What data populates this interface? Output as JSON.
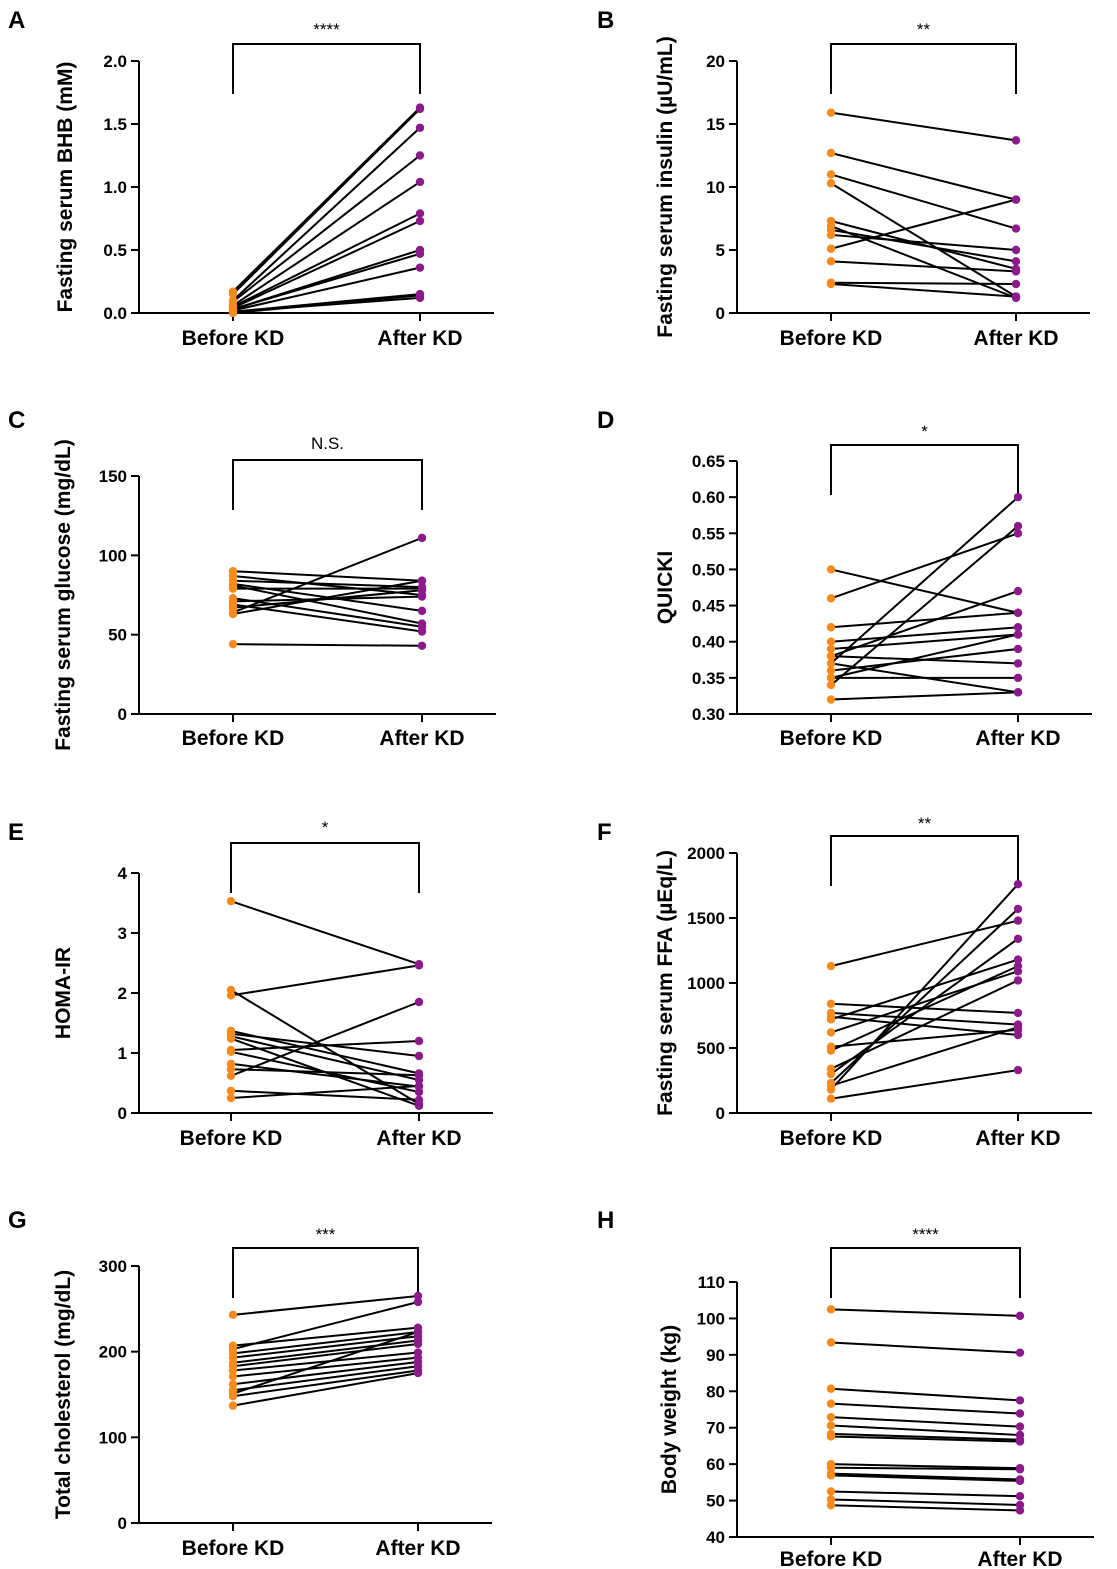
{
  "colors": {
    "before": "#F58A1F",
    "after": "#8B1A8B",
    "line": "#000000"
  },
  "chart_data": [
    {
      "panel": "A",
      "type": "line",
      "ylabel": "Fasting serum BHB (mM)",
      "categories": [
        "Before KD",
        "After KD"
      ],
      "ylim": [
        0,
        2.0
      ],
      "yticks": [
        0.0,
        0.5,
        1.0,
        1.5,
        2.0
      ],
      "ytick_labels": [
        "0.0",
        "0.5",
        "1.0",
        "1.5",
        "2.0"
      ],
      "significance": "****",
      "pairs": [
        [
          0.17,
          1.63
        ],
        [
          0.15,
          1.62
        ],
        [
          0.1,
          1.47
        ],
        [
          0.09,
          1.25
        ],
        [
          0.06,
          1.04
        ],
        [
          0.05,
          0.79
        ],
        [
          0.04,
          0.73
        ],
        [
          0.03,
          0.5
        ],
        [
          0.03,
          0.47
        ],
        [
          0.02,
          0.36
        ],
        [
          0.01,
          0.15
        ],
        [
          0.01,
          0.12
        ],
        [
          0.0,
          0.14
        ]
      ]
    },
    {
      "panel": "B",
      "type": "line",
      "ylabel": "Fasting serum insulin (µU/mL)",
      "categories": [
        "Before KD",
        "After KD"
      ],
      "ylim": [
        0,
        20
      ],
      "yticks": [
        0,
        5,
        10,
        15,
        20
      ],
      "ytick_labels": [
        "0",
        "5",
        "10",
        "15",
        "20"
      ],
      "significance": "**",
      "pairs": [
        [
          15.9,
          13.7
        ],
        [
          12.7,
          9.0
        ],
        [
          11.0,
          6.7
        ],
        [
          10.3,
          1.3
        ],
        [
          7.3,
          3.5
        ],
        [
          6.9,
          1.2
        ],
        [
          6.6,
          4.1
        ],
        [
          6.2,
          5.0
        ],
        [
          5.1,
          9.0
        ],
        [
          4.1,
          3.3
        ],
        [
          2.4,
          2.3
        ],
        [
          2.3,
          1.3
        ]
      ]
    },
    {
      "panel": "C",
      "type": "line",
      "ylabel": "Fasting serum glucose (mg/dL)",
      "categories": [
        "Before KD",
        "After KD"
      ],
      "ylim": [
        0,
        150
      ],
      "yticks": [
        0,
        50,
        100,
        150
      ],
      "ytick_labels": [
        "0",
        "50",
        "100",
        "150"
      ],
      "significance": "N.S.",
      "pairs": [
        [
          90,
          84
        ],
        [
          87,
          75
        ],
        [
          84,
          80
        ],
        [
          82,
          65
        ],
        [
          81,
          57
        ],
        [
          79,
          79
        ],
        [
          73,
          55
        ],
        [
          71,
          74
        ],
        [
          69,
          52
        ],
        [
          67,
          78
        ],
        [
          64,
          111
        ],
        [
          63,
          84
        ],
        [
          44,
          43
        ]
      ]
    },
    {
      "panel": "D",
      "type": "line",
      "ylabel": "QUICKI",
      "categories": [
        "Before KD",
        "After KD"
      ],
      "ylim": [
        0.3,
        0.65
      ],
      "yticks": [
        0.3,
        0.35,
        0.4,
        0.45,
        0.5,
        0.55,
        0.6,
        0.65
      ],
      "ytick_labels": [
        "0.30",
        "0.35",
        "0.40",
        "0.45",
        "0.50",
        "0.55",
        "0.60",
        "0.65"
      ],
      "significance": "*",
      "pairs": [
        [
          0.5,
          0.44
        ],
        [
          0.46,
          0.55
        ],
        [
          0.42,
          0.44
        ],
        [
          0.4,
          0.42
        ],
        [
          0.39,
          0.41
        ],
        [
          0.38,
          0.37
        ],
        [
          0.38,
          0.47
        ],
        [
          0.37,
          0.6
        ],
        [
          0.37,
          0.33
        ],
        [
          0.36,
          0.39
        ],
        [
          0.35,
          0.35
        ],
        [
          0.35,
          0.41
        ],
        [
          0.34,
          0.56
        ],
        [
          0.32,
          0.33
        ]
      ]
    },
    {
      "panel": "E",
      "type": "line",
      "ylabel": "HOMA-IR",
      "categories": [
        "Before KD",
        "After KD"
      ],
      "ylim": [
        0,
        4
      ],
      "yticks": [
        0,
        1,
        2,
        3,
        4
      ],
      "ytick_labels": [
        "0",
        "1",
        "2",
        "3",
        "4"
      ],
      "significance": "*",
      "pairs": [
        [
          3.53,
          2.48
        ],
        [
          2.05,
          0.15
        ],
        [
          1.96,
          2.46
        ],
        [
          1.37,
          0.66
        ],
        [
          1.32,
          0.95
        ],
        [
          1.28,
          0.55
        ],
        [
          1.24,
          0.12
        ],
        [
          1.05,
          1.2
        ],
        [
          1.02,
          0.35
        ],
        [
          0.82,
          0.44
        ],
        [
          0.73,
          0.63
        ],
        [
          0.62,
          1.85
        ],
        [
          0.37,
          0.22
        ],
        [
          0.25,
          0.45
        ]
      ]
    },
    {
      "panel": "F",
      "type": "line",
      "ylabel": "Fasting serum FFA (µEq/L)",
      "categories": [
        "Before KD",
        "After KD"
      ],
      "ylim": [
        0,
        2000
      ],
      "yticks": [
        0,
        500,
        1000,
        1500,
        2000
      ],
      "ytick_labels": [
        "0",
        "500",
        "1000",
        "1500",
        "2000"
      ],
      "significance": "**",
      "pairs": [
        [
          1130,
          1480
        ],
        [
          840,
          770
        ],
        [
          770,
          680
        ],
        [
          740,
          600
        ],
        [
          720,
          1180
        ],
        [
          620,
          1090
        ],
        [
          510,
          640
        ],
        [
          480,
          1130
        ],
        [
          340,
          1020
        ],
        [
          300,
          1340
        ],
        [
          230,
          1570
        ],
        [
          210,
          660
        ],
        [
          180,
          1760
        ],
        [
          110,
          330
        ]
      ]
    },
    {
      "panel": "G",
      "type": "line",
      "ylabel": "Total cholesterol (mg/dL)",
      "categories": [
        "Before KD",
        "After KD"
      ],
      "ylim": [
        0,
        300
      ],
      "yticks": [
        0,
        100,
        200,
        300
      ],
      "ytick_labels": [
        "0",
        "100",
        "200",
        "300"
      ],
      "significance": "***",
      "pairs": [
        [
          243,
          265
        ],
        [
          207,
          228
        ],
        [
          203,
          258
        ],
        [
          198,
          223
        ],
        [
          193,
          218
        ],
        [
          187,
          213
        ],
        [
          183,
          209
        ],
        [
          178,
          199
        ],
        [
          171,
          193
        ],
        [
          162,
          188
        ],
        [
          155,
          183
        ],
        [
          151,
          223
        ],
        [
          148,
          178
        ],
        [
          137,
          175
        ]
      ]
    },
    {
      "panel": "H",
      "type": "line",
      "ylabel": "Body weight (kg)",
      "categories": [
        "Before KD",
        "After KD"
      ],
      "ylim": [
        40,
        110
      ],
      "yticks": [
        40,
        50,
        60,
        70,
        80,
        90,
        100,
        110
      ],
      "ytick_labels": [
        "40",
        "50",
        "60",
        "70",
        "80",
        "90",
        "100",
        "110"
      ],
      "significance": "****",
      "pairs": [
        [
          102.5,
          100.7
        ],
        [
          93.4,
          90.6
        ],
        [
          80.7,
          77.5
        ],
        [
          76.6,
          73.9
        ],
        [
          72.9,
          70.3
        ],
        [
          70.6,
          68.0
        ],
        [
          68.3,
          66.7
        ],
        [
          67.6,
          66.2
        ],
        [
          60.0,
          58.9
        ],
        [
          59.0,
          58.6
        ],
        [
          57.4,
          55.8
        ],
        [
          56.9,
          55.4
        ],
        [
          52.5,
          51.2
        ],
        [
          50.3,
          48.8
        ],
        [
          48.7,
          47.3
        ]
      ]
    }
  ]
}
